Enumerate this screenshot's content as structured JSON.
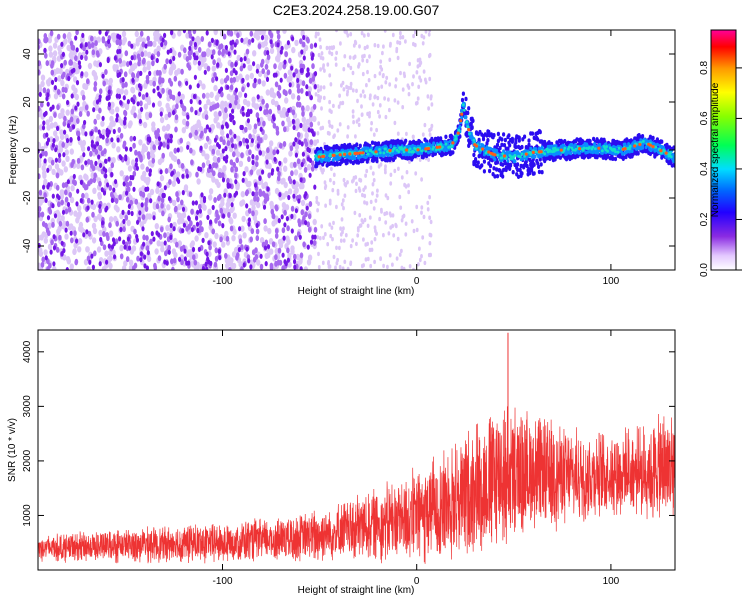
{
  "title": "C2E3.2024.258.19.00.G07",
  "chart_data": [
    {
      "type": "heatmap",
      "xlabel": "Height of straight line (km)",
      "ylabel": "Frequency (Hz)",
      "xlim": [
        -195,
        133
      ],
      "ylim": [
        -50,
        50
      ],
      "x_ticks": [
        -100,
        0,
        100
      ],
      "y_ticks": [
        -40,
        -20,
        0,
        20,
        40
      ],
      "colorbar": {
        "label": "Normalized spectral amplitude",
        "range": [
          0,
          0.95
        ],
        "ticks": [
          0.0,
          0.2,
          0.4,
          0.6,
          0.8
        ],
        "tick_labels": [
          "0.0",
          "0.2",
          "0.4",
          "0.6",
          "0.8"
        ]
      },
      "ridge_profile": [
        {
          "x": -52,
          "f": -3
        },
        {
          "x": -40,
          "f": -2
        },
        {
          "x": -25,
          "f": -1
        },
        {
          "x": -10,
          "f": 0
        },
        {
          "x": 0,
          "f": 0
        },
        {
          "x": 10,
          "f": 1
        },
        {
          "x": 18,
          "f": 2
        },
        {
          "x": 22,
          "f": 8
        },
        {
          "x": 24,
          "f": 20
        },
        {
          "x": 26,
          "f": 10
        },
        {
          "x": 30,
          "f": 2
        },
        {
          "x": 40,
          "f": -2
        },
        {
          "x": 50,
          "f": -3
        },
        {
          "x": 60,
          "f": -1
        },
        {
          "x": 75,
          "f": 0
        },
        {
          "x": 90,
          "f": 1
        },
        {
          "x": 105,
          "f": 0
        },
        {
          "x": 118,
          "f": 3
        },
        {
          "x": 125,
          "f": 0
        },
        {
          "x": 133,
          "f": -3
        }
      ]
    },
    {
      "type": "line",
      "xlabel": "Height of straight line (km)",
      "ylabel": "SNR (10 * v/v)",
      "xlim": [
        -195,
        133
      ],
      "ylim": [
        0,
        4400
      ],
      "x_ticks": [
        -100,
        0,
        100
      ],
      "y_ticks": [
        1000,
        2000,
        3000,
        4000
      ],
      "series_color": "#ee3333",
      "envelope": [
        {
          "x": -195,
          "mean": 400,
          "spread": 200
        },
        {
          "x": -150,
          "mean": 450,
          "spread": 250
        },
        {
          "x": -100,
          "mean": 500,
          "spread": 300
        },
        {
          "x": -60,
          "mean": 600,
          "spread": 350
        },
        {
          "x": -40,
          "mean": 700,
          "spread": 450
        },
        {
          "x": -20,
          "mean": 850,
          "spread": 550
        },
        {
          "x": 0,
          "mean": 1000,
          "spread": 700
        },
        {
          "x": 20,
          "mean": 1300,
          "spread": 900
        },
        {
          "x": 40,
          "mean": 1700,
          "spread": 1100
        },
        {
          "x": 60,
          "mean": 1800,
          "spread": 900
        },
        {
          "x": 80,
          "mean": 1700,
          "spread": 700
        },
        {
          "x": 100,
          "mean": 1800,
          "spread": 600
        },
        {
          "x": 120,
          "mean": 1800,
          "spread": 700
        },
        {
          "x": 133,
          "mean": 1900,
          "spread": 1000
        }
      ],
      "peak": {
        "x": 47,
        "y": 4350
      }
    }
  ]
}
